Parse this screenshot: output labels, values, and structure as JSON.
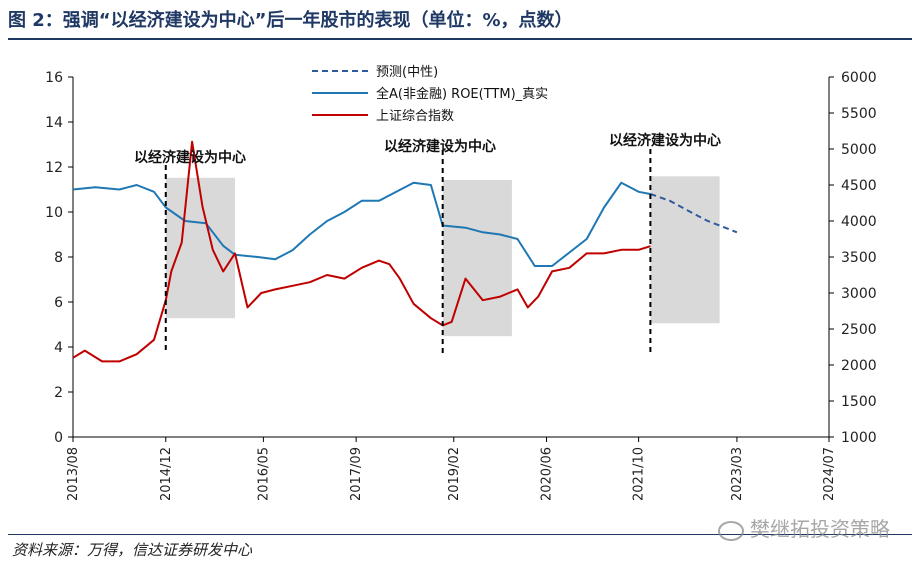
{
  "header": {
    "title": "图 2：强调“以经济建设为中心”后一年股市的表现（单位：%，点数）"
  },
  "footer": {
    "source": "资料来源：万得，信达证券研发中心",
    "watermark": "樊继拓投资策略"
  },
  "chart_data": {
    "type": "line",
    "x_axis": {
      "tick_labels": [
        "2013/08",
        "2014/12",
        "2016/05",
        "2017/09",
        "2019/02",
        "2020/06",
        "2021/10",
        "2023/03",
        "2024/07"
      ],
      "tick_values": [
        2013.58,
        2014.92,
        2016.33,
        2017.67,
        2019.08,
        2020.42,
        2021.75,
        2023.17,
        2024.5
      ]
    },
    "y_left": {
      "range": [
        0,
        16
      ],
      "ticks": [
        "0",
        "2",
        "4",
        "6",
        "8",
        "10",
        "12",
        "14",
        "16"
      ]
    },
    "y_right": {
      "range": [
        1000,
        6000
      ],
      "ticks": [
        "1000",
        "1500",
        "2000",
        "2500",
        "3000",
        "3500",
        "4000",
        "4500",
        "5000",
        "5500",
        "6000"
      ]
    },
    "legend": [
      "预测(中性)",
      "全A(非金融) ROE(TTM)_真实",
      "上证综合指数"
    ],
    "colors": {
      "roe": "#1f77b4",
      "forecast": "#2e5a9c",
      "index": "#c00000",
      "shade": "#d9d9d9",
      "text": "#222222"
    },
    "annotations": [
      {
        "label": "以经济建设为中心",
        "marker_x": 2014.92,
        "shade_from": 2014.92,
        "shade_to": 2015.92,
        "shade_y_top": 4600,
        "shade_y_bottom": 2650
      },
      {
        "label": "以经济建设为中心",
        "marker_x": 2018.92,
        "shade_from": 2018.92,
        "shade_to": 2019.92,
        "shade_y_top": 4570,
        "shade_y_bottom": 2400
      },
      {
        "label": "以经济建设为中心",
        "marker_x": 2021.92,
        "shade_from": 2021.92,
        "shade_to": 2022.92,
        "shade_y_top": 4620,
        "shade_y_bottom": 2580
      }
    ],
    "series": [
      {
        "name": "全A(非金融) ROE(TTM)_真实",
        "axis": "left",
        "x": [
          2013.58,
          2013.9,
          2014.25,
          2014.5,
          2014.75,
          2014.92,
          2015.2,
          2015.5,
          2015.75,
          2015.92,
          2016.25,
          2016.5,
          2016.75,
          2017.0,
          2017.25,
          2017.5,
          2017.75,
          2018.0,
          2018.25,
          2018.5,
          2018.75,
          2018.92,
          2019.25,
          2019.5,
          2019.75,
          2020.0,
          2020.25,
          2020.5,
          2020.75,
          2021.0,
          2021.25,
          2021.5,
          2021.75,
          2021.92
        ],
        "y": [
          11.0,
          11.1,
          11.0,
          11.2,
          10.9,
          10.2,
          9.6,
          9.5,
          8.5,
          8.1,
          8.0,
          7.9,
          8.3,
          9.0,
          9.6,
          10.0,
          10.5,
          10.5,
          10.9,
          11.3,
          11.2,
          9.4,
          9.3,
          9.1,
          9.0,
          8.8,
          7.6,
          7.6,
          8.2,
          8.8,
          10.2,
          11.3,
          10.9,
          10.8
        ]
      },
      {
        "name": "预测(中性)",
        "axis": "left",
        "x": [
          2021.92,
          2022.2,
          2022.5,
          2022.75,
          2023.0,
          2023.17
        ],
        "y": [
          10.8,
          10.5,
          10.0,
          9.6,
          9.3,
          9.1
        ]
      },
      {
        "name": "上证综合指数",
        "axis": "right",
        "x": [
          2013.58,
          2013.75,
          2014.0,
          2014.25,
          2014.5,
          2014.75,
          2014.92,
          2015.0,
          2015.15,
          2015.3,
          2015.45,
          2015.6,
          2015.75,
          2015.92,
          2016.1,
          2016.3,
          2016.5,
          2016.75,
          2017.0,
          2017.25,
          2017.5,
          2017.75,
          2018.0,
          2018.15,
          2018.3,
          2018.5,
          2018.75,
          2018.92,
          2019.05,
          2019.25,
          2019.5,
          2019.75,
          2020.0,
          2020.15,
          2020.3,
          2020.5,
          2020.75,
          2021.0,
          2021.25,
          2021.5,
          2021.75,
          2021.92
        ],
        "y": [
          2100,
          2200,
          2050,
          2050,
          2150,
          2350,
          2900,
          3300,
          3700,
          5100,
          4200,
          3600,
          3300,
          3550,
          2800,
          3000,
          3050,
          3100,
          3150,
          3250,
          3200,
          3350,
          3450,
          3400,
          3200,
          2850,
          2650,
          2550,
          2600,
          3200,
          2900,
          2950,
          3050,
          2800,
          2950,
          3300,
          3350,
          3550,
          3550,
          3600,
          3600,
          3650
        ]
      }
    ]
  }
}
